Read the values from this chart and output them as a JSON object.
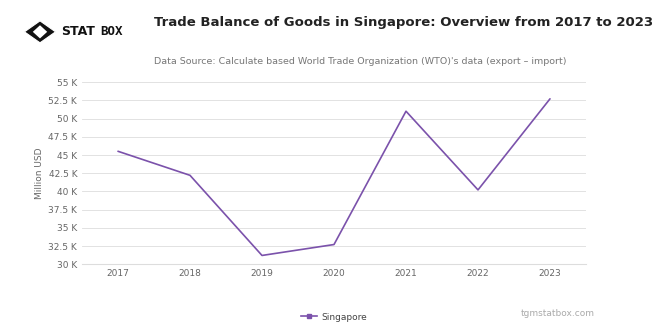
{
  "years": [
    2017,
    2018,
    2019,
    2020,
    2021,
    2022,
    2023
  ],
  "values": [
    45500,
    42200,
    31200,
    32700,
    51000,
    40200,
    52700
  ],
  "line_color": "#7B52AB",
  "title": "Trade Balance of Goods in Singapore: Overview from 2017 to 2023",
  "subtitle": "Data Source: Calculate based World Trade Organization (WTO)'s data (export – import)",
  "ylabel": "Million USD",
  "legend_label": "Singapore",
  "watermark": "tgmstatbox.com",
  "ylim_min": 30000,
  "ylim_max": 55000,
  "yticks": [
    30000,
    32500,
    35000,
    37500,
    40000,
    42500,
    45000,
    47500,
    50000,
    52500,
    55000
  ],
  "bg_color": "#ffffff",
  "plot_bg_color": "#ffffff",
  "grid_color": "#dddddd",
  "title_fontsize": 9.5,
  "subtitle_fontsize": 6.8,
  "tick_fontsize": 6.5,
  "ylabel_fontsize": 6.5,
  "watermark_fontsize": 6.5,
  "legend_fontsize": 6.5,
  "logo_fontsize": 9
}
